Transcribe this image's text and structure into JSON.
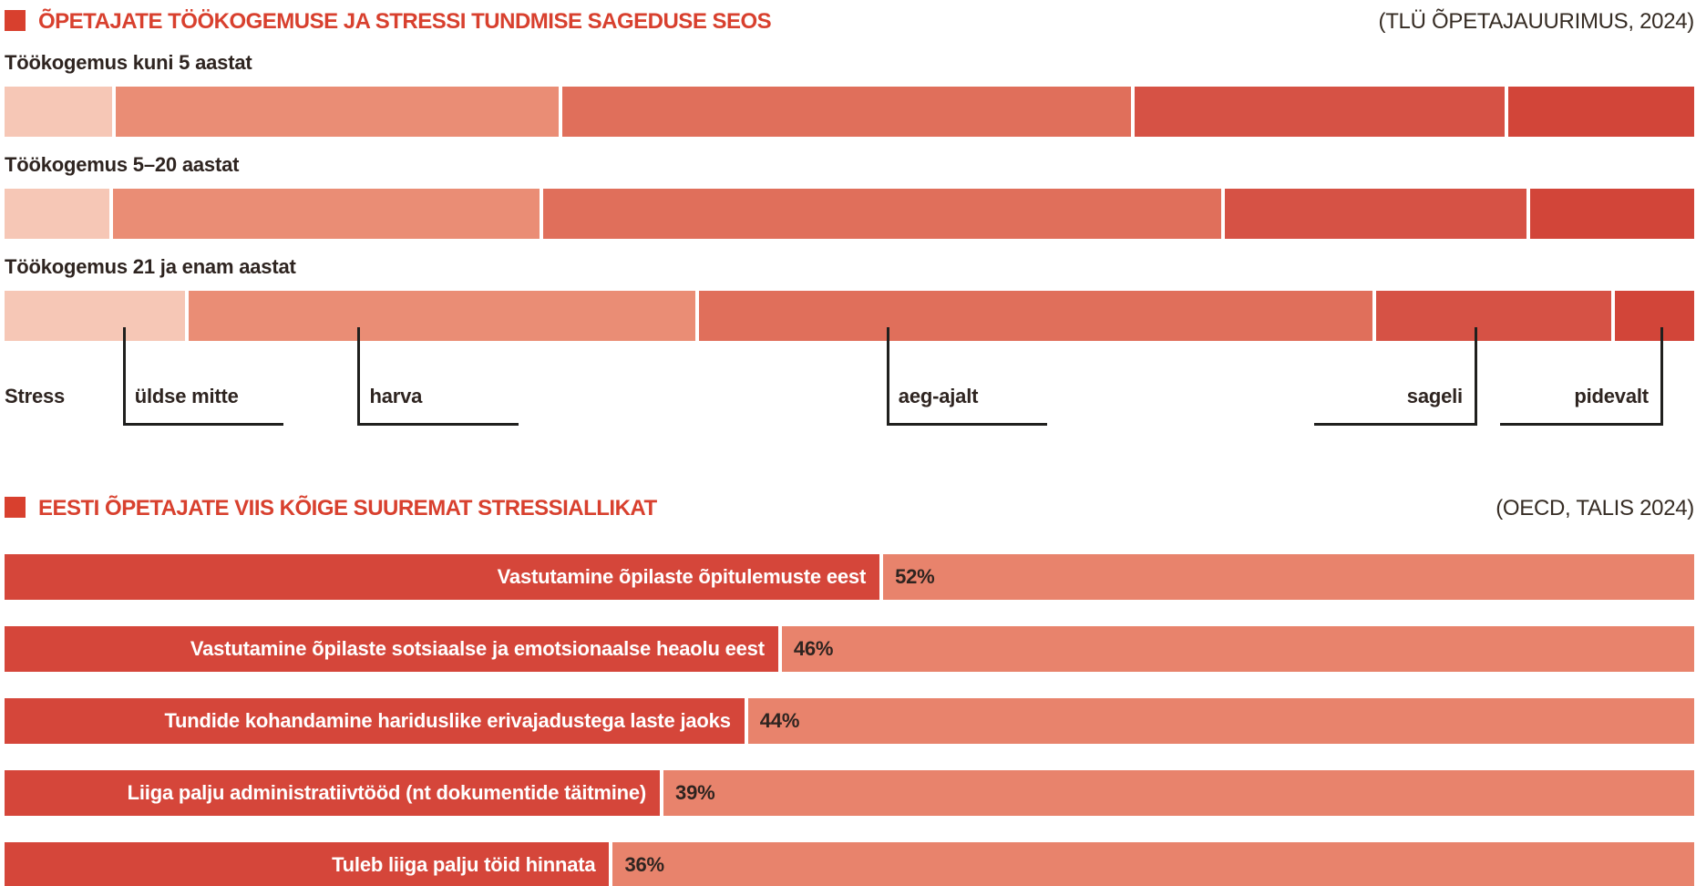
{
  "colors": {
    "accent_red": "#d8402e",
    "text_dark": "#2e2420",
    "line_black": "#20201e",
    "palette": [
      "#f6c7b6",
      "#ea8d75",
      "#e06f5b",
      "#d65245",
      "#d24539"
    ],
    "bar_dark": "#d5463a",
    "bar_light": "#e8836c"
  },
  "section1": {
    "title": "ÕPETAJATE TÖÖKOGEMUSE JA STRESSI TUNDMISE SAGEDUSE SEOS",
    "source": "(TLÜ ÕPETAJAUURIMUS, 2024)",
    "bars": [
      {
        "label": "Töökogemus kuni 5 aastat"
      },
      {
        "label": "Töökogemus 5–20 aastat"
      },
      {
        "label": "Töökogemus 21 ja enam aastat"
      }
    ],
    "axis_title": "Stress",
    "axis_labels": [
      {
        "label": "üldse mitte",
        "line_x": 7.0,
        "ul_left": 7.0,
        "ul_w": 9.5
      },
      {
        "label": "harva",
        "line_x": 20.9,
        "ul_left": 20.9,
        "ul_w": 9.5
      },
      {
        "label": "aeg-ajalt",
        "line_x": 52.2,
        "ul_left": 52.2,
        "ul_w": 9.5
      },
      {
        "label": "sageli",
        "line_x": 87.0,
        "ul_left": 77.5,
        "ul_w": 9.5
      },
      {
        "label": "pidevalt",
        "line_x": 98.0,
        "ul_left": 88.5,
        "ul_w": 9.5
      }
    ]
  },
  "section2": {
    "title": "EESTI ÕPETAJATE VIIS KÕIGE SUUREMAT STRESSIALLIKAT",
    "source": "(OECD, TALIS 2024)",
    "bars": [
      {
        "label": "Vastutamine õpilaste õpitulemuste eest",
        "pct": "52%"
      },
      {
        "label": "Vastutamine õpilaste sotsiaalse ja emotsionaalse heaolu eest",
        "pct": "46%"
      },
      {
        "label": "Tundide kohandamine hariduslike erivajadustega laste jaoks",
        "pct": "44%"
      },
      {
        "label": "Liiga palju administratiivtööd (nt dokumentide täitmine)",
        "pct": "39%"
      },
      {
        "label": "Tuleb liiga palju töid hinnata",
        "pct": "36%"
      }
    ]
  },
  "chart_data": [
    {
      "type": "bar",
      "variant": "horizontal-100pct-stacked",
      "title": "ÕPETAJATE TÖÖKOGEMUSE JA STRESSI TUNDMISE SAGEDUSE SEOS",
      "source": "(TLÜ ÕPETAJAUURIMUS, 2024)",
      "categories": [
        "Töökogemus kuni 5 aastat",
        "Töökogemus 5–20 aastat",
        "Töökogemus 21 ja enam aastat"
      ],
      "axis_label": "Stress",
      "series": [
        {
          "name": "üldse mitte",
          "values": [
            6.6,
            6.4,
            10.9
          ]
        },
        {
          "name": "harva",
          "values": [
            26.4,
            25.5,
            30.2
          ]
        },
        {
          "name": "aeg-ajalt",
          "values": [
            33.9,
            40.3,
            40.1
          ]
        },
        {
          "name": "sageli",
          "values": [
            22.1,
            18.1,
            14.1
          ]
        },
        {
          "name": "pidevalt",
          "values": [
            11.0,
            9.7,
            4.7
          ]
        }
      ],
      "unit": "% of bar width (estimated from pixels; no numeric labels shown)",
      "legend_position": "below-as-axis-callouts",
      "grid": false
    },
    {
      "type": "bar",
      "variant": "horizontal",
      "title": "EESTI ÕPETAJATE VIIS KÕIGE SUUREMAT STRESSIALLIKAT",
      "source": "(OECD, TALIS 2024)",
      "categories": [
        "Vastutamine õpilaste õpitulemuste eest",
        "Vastutamine õpilaste sotsiaalse ja emotsionaalse heaolu eest",
        "Tundide kohandamine hariduslike erivajadustega laste jaoks",
        "Liiga palju administratiivtööd (nt dokumentide täitmine)",
        "Tuleb liiga palju töid hinnata"
      ],
      "values": [
        52,
        46,
        44,
        39,
        36
      ],
      "unit": "%",
      "xlim": [
        0,
        100
      ],
      "grid": false,
      "data_labels": true
    }
  ]
}
